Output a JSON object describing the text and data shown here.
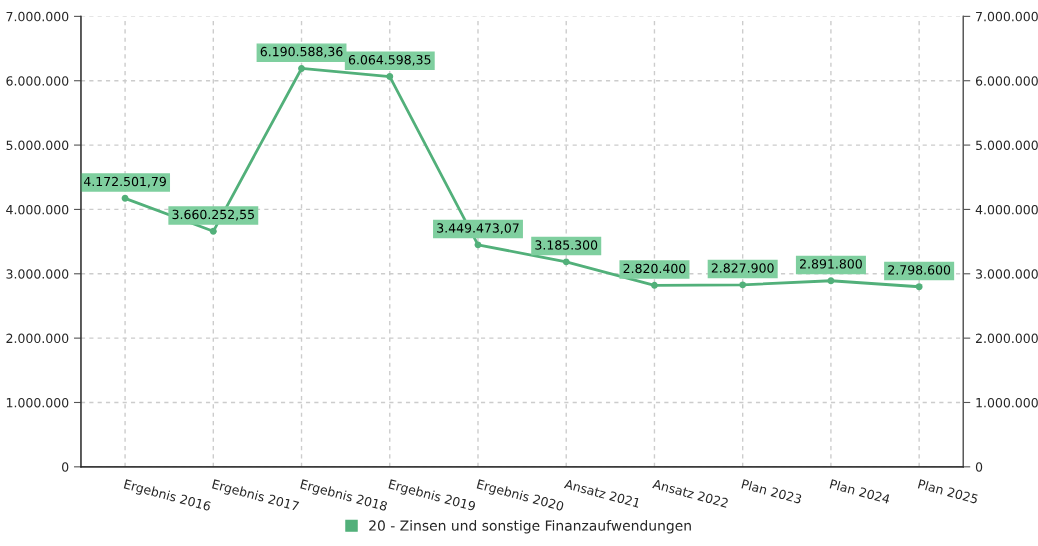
{
  "chart_data": {
    "type": "line",
    "categories": [
      "Ergebnis 2016",
      "Ergebnis 2017",
      "Ergebnis 2018",
      "Ergebnis 2019",
      "Ergebnis 2020",
      "Ansatz 2021",
      "Ansatz 2022",
      "Plan 2023",
      "Plan 2024",
      "Plan 2025"
    ],
    "series": [
      {
        "name": "20 - Zinsen und sonstige Finanzaufwendungen",
        "color": "#52b07a",
        "values": [
          4172501.79,
          3660252.55,
          6190588.36,
          6064598.35,
          3449473.07,
          3185300,
          2820400,
          2827900,
          2891800,
          2798600
        ],
        "value_labels": [
          "4.172.501,79",
          "3.660.252,55",
          "6.190.588,36",
          "6.064.598,35",
          "3.449.473,07",
          "3.185.300",
          "2.820.400",
          "2.827.900",
          "2.891.800",
          "2.798.600"
        ]
      }
    ],
    "ylim": [
      0,
      7000000
    ],
    "yticks": [
      {
        "value": 0,
        "label": "0"
      },
      {
        "value": 1000000,
        "label": "1.000.000"
      },
      {
        "value": 2000000,
        "label": "2.000.000"
      },
      {
        "value": 3000000,
        "label": "3.000.000"
      },
      {
        "value": 4000000,
        "label": "4.000.000"
      },
      {
        "value": 5000000,
        "label": "5.000.000"
      },
      {
        "value": 6000000,
        "label": "6.000.000"
      },
      {
        "value": 7000000,
        "label": "7.000.000"
      }
    ],
    "y2lim": [
      0,
      7000000
    ],
    "y2ticks": [
      {
        "value": 0,
        "label": "0"
      },
      {
        "value": 1000000,
        "label": "1.000.000"
      },
      {
        "value": 2000000,
        "label": "2.000.000"
      },
      {
        "value": 3000000,
        "label": "3.000.000"
      },
      {
        "value": 4000000,
        "label": "4.000.000"
      },
      {
        "value": 5000000,
        "label": "5.000.000"
      },
      {
        "value": 6000000,
        "label": "6.000.000"
      },
      {
        "value": 7000000,
        "label": "7.000.000"
      }
    ],
    "grid": true,
    "legend": "bottom",
    "marker": "circle",
    "line_style": "solid"
  }
}
